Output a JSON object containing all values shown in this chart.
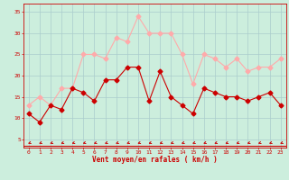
{
  "x": [
    0,
    1,
    2,
    3,
    4,
    5,
    6,
    7,
    8,
    9,
    10,
    11,
    12,
    13,
    14,
    15,
    16,
    17,
    18,
    19,
    20,
    21,
    22,
    23
  ],
  "wind_avg": [
    11,
    9,
    13,
    12,
    17,
    16,
    14,
    19,
    19,
    22,
    22,
    14,
    21,
    15,
    13,
    11,
    17,
    16,
    15,
    15,
    14,
    15,
    16,
    13
  ],
  "wind_gust": [
    13,
    15,
    13,
    17,
    17,
    25,
    25,
    24,
    29,
    28,
    34,
    30,
    30,
    30,
    25,
    18,
    25,
    24,
    22,
    24,
    21,
    22,
    22,
    24
  ],
  "avg_color": "#cc0000",
  "gust_color": "#ffaaaa",
  "bg_color": "#cceedd",
  "grid_color": "#aacccc",
  "xlabel": "Vent moyen/en rafales ( km/h )",
  "ylim": [
    3,
    37
  ],
  "yticks": [
    5,
    10,
    15,
    20,
    25,
    30,
    35
  ],
  "xlim": [
    -0.5,
    23.5
  ],
  "tick_color": "#cc0000",
  "line_width": 0.8,
  "marker_size": 2.5
}
